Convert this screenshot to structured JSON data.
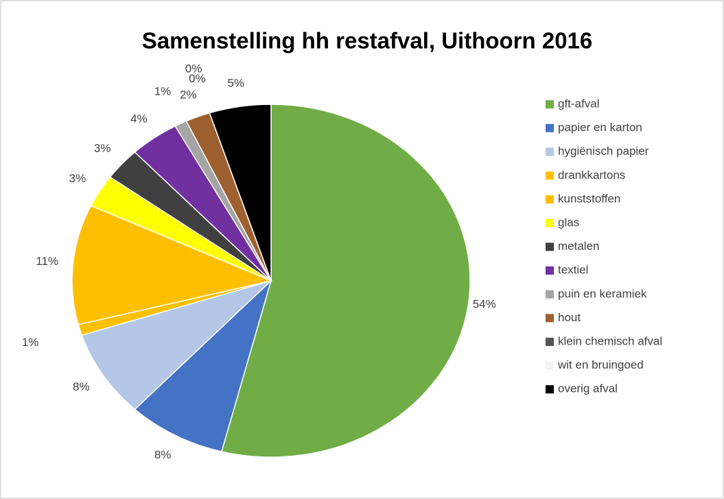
{
  "chart_data": {
    "type": "pie",
    "title": "Samenstelling hh restafval, Uithoorn 2016",
    "categories": [
      "gft-afval",
      "papier en karton",
      "hygiënisch papier",
      "drankkartons",
      "kunststoffen",
      "glas",
      "metalen",
      "textiel",
      "puin en keramiek",
      "hout",
      "klein chemisch afval",
      "wit en bruingoed",
      "overig afval"
    ],
    "values": [
      54,
      8,
      8,
      1,
      11,
      3,
      3,
      4,
      1,
      2,
      0,
      0,
      5
    ],
    "value_labels": [
      "54%",
      "8%",
      "8%",
      "1%",
      "11%",
      "3%",
      "3%",
      "4%",
      "1%",
      "2%",
      "0%",
      "0%",
      "5%"
    ],
    "colors": [
      "#70ad47",
      "#4472c4",
      "#b4c7e7",
      "#ffc000",
      "#ffbf00",
      "#ffff00",
      "#404040",
      "#7030a0",
      "#a5a5a5",
      "#9e602e",
      "#555555",
      "#f2f2f2",
      "#000000"
    ],
    "legend": "right"
  }
}
